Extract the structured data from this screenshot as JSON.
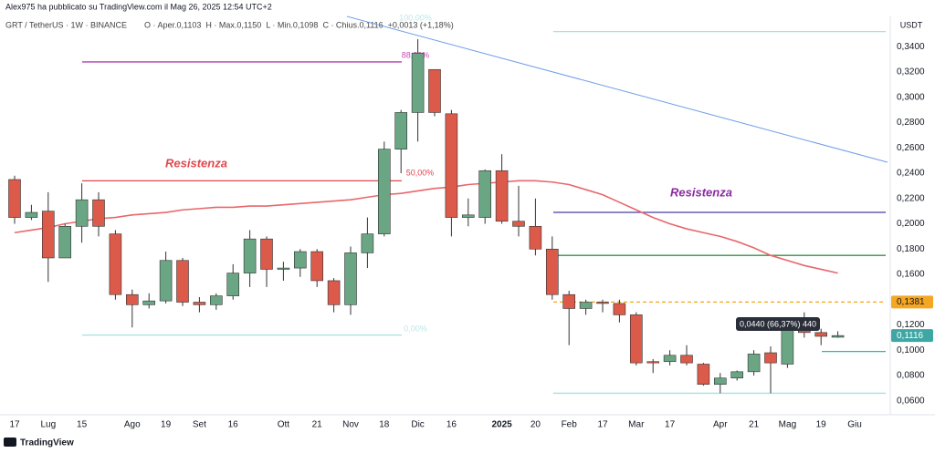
{
  "header": "Alex975 ha pubblicato su TradingView.com il Mag 26, 2025 12:54 UTC+2",
  "footer": "TradingView",
  "chart_data": {
    "type": "candlestick",
    "title": "GRT / TetherUS · 1W · BINANCE",
    "ohlc_legend": "O · Aper.0,1103  H · Max.0,1150  L · Min.0,1098  C · Chius.0,1116  +0,0013 (+1,18%)",
    "y_axis_label": "USDT",
    "up_color": "#6aa584",
    "down_color": "#db5a4a",
    "categories": [
      "17",
      null,
      "Lug",
      null,
      "15",
      null,
      null,
      "Ago",
      null,
      "19",
      null,
      "Set",
      null,
      "16",
      null,
      null,
      "Ott",
      null,
      "21",
      null,
      "Nov",
      null,
      "18",
      null,
      "Dic",
      null,
      "16",
      null,
      null,
      "2025",
      null,
      "20",
      null,
      "Feb",
      null,
      "17",
      null,
      "Mar",
      null,
      "17",
      null,
      null,
      "Apr",
      null,
      "21",
      null,
      "Mag",
      null,
      "19",
      null,
      "Giu"
    ],
    "open": [
      0.235,
      0.205,
      0.21,
      0.173,
      0.198,
      0.219,
      0.192,
      0.144,
      0.136,
      0.139,
      0.171,
      0.138,
      0.136,
      0.143,
      0.161,
      0.188,
      0.164,
      0.165,
      0.178,
      0.155,
      0.136,
      0.177,
      0.192,
      0.259,
      0.288,
      0.322,
      0.287,
      0.205,
      0.205,
      0.242,
      0.202,
      0.198,
      0.18,
      0.144,
      0.133,
      0.138,
      0.137,
      0.128,
      0.091,
      0.091,
      0.096,
      0.089,
      0.073,
      0.078,
      0.083,
      0.098,
      0.089,
      0.117,
      0.114,
      0.1103,
      null
    ],
    "high": [
      0.238,
      0.215,
      0.225,
      0.2,
      0.232,
      0.225,
      0.195,
      0.148,
      0.145,
      0.178,
      0.173,
      0.142,
      0.145,
      0.168,
      0.195,
      0.19,
      0.17,
      0.18,
      0.18,
      0.157,
      0.182,
      0.205,
      0.265,
      0.29,
      0.346,
      0.322,
      0.29,
      0.22,
      0.243,
      0.255,
      0.23,
      0.22,
      0.19,
      0.147,
      0.14,
      0.14,
      0.14,
      0.13,
      0.093,
      0.1,
      0.104,
      0.09,
      0.082,
      0.084,
      0.1,
      0.103,
      0.125,
      0.13,
      0.117,
      0.115,
      null
    ],
    "low": [
      0.2,
      0.203,
      0.154,
      0.173,
      0.185,
      0.19,
      0.14,
      0.118,
      0.133,
      0.137,
      0.135,
      0.13,
      0.132,
      0.14,
      0.15,
      0.15,
      0.155,
      0.158,
      0.15,
      0.13,
      0.128,
      0.165,
      0.19,
      0.24,
      0.265,
      0.285,
      0.19,
      0.198,
      0.2,
      0.2,
      0.19,
      0.175,
      0.14,
      0.104,
      0.128,
      0.13,
      0.122,
      0.088,
      0.082,
      0.088,
      0.088,
      0.072,
      0.066,
      0.076,
      0.08,
      0.066,
      0.086,
      0.11,
      0.104,
      0.1098,
      null
    ],
    "close": [
      0.205,
      0.209,
      0.173,
      0.198,
      0.219,
      0.198,
      0.144,
      0.136,
      0.139,
      0.171,
      0.138,
      0.136,
      0.143,
      0.161,
      0.188,
      0.164,
      0.165,
      0.178,
      0.155,
      0.136,
      0.177,
      0.192,
      0.259,
      0.288,
      0.335,
      0.288,
      0.205,
      0.207,
      0.242,
      0.202,
      0.198,
      0.18,
      0.144,
      0.133,
      0.138,
      0.137,
      0.128,
      0.09,
      0.09,
      0.096,
      0.09,
      0.073,
      0.078,
      0.083,
      0.097,
      0.09,
      0.117,
      0.114,
      0.111,
      0.1116,
      null
    ],
    "moving_average": {
      "color": "#e8676b",
      "values": [
        0.193,
        0.195,
        0.197,
        0.2,
        0.202,
        0.204,
        0.205,
        0.207,
        0.208,
        0.209,
        0.211,
        0.212,
        0.213,
        0.213,
        0.214,
        0.214,
        0.215,
        0.216,
        0.217,
        0.218,
        0.219,
        0.221,
        0.223,
        0.224,
        0.226,
        0.228,
        0.229,
        0.231,
        0.232,
        0.233,
        0.234,
        0.234,
        0.233,
        0.231,
        0.227,
        0.223,
        0.217,
        0.211,
        0.205,
        0.2,
        0.196,
        0.193,
        0.19,
        0.186,
        0.181,
        0.175,
        0.171,
        0.167,
        0.164,
        0.161,
        null
      ]
    },
    "ylim": [
      0.049,
      0.364
    ],
    "yticks": [
      {
        "value": 0.34,
        "label": "0,3400"
      },
      {
        "value": 0.32,
        "label": "0,3200"
      },
      {
        "value": 0.3,
        "label": "0,3000"
      },
      {
        "value": 0.28,
        "label": "0,2800"
      },
      {
        "value": 0.26,
        "label": "0,2600"
      },
      {
        "value": 0.24,
        "label": "0,2400"
      },
      {
        "value": 0.22,
        "label": "0,2200"
      },
      {
        "value": 0.2,
        "label": "0,2000"
      },
      {
        "value": 0.18,
        "label": "0,1800"
      },
      {
        "value": 0.16,
        "label": "0,1600"
      },
      {
        "value": 0.12,
        "label": "0,1200"
      },
      {
        "value": 0.1,
        "label": "0,1000"
      },
      {
        "value": 0.08,
        "label": "0,0800"
      },
      {
        "value": 0.06,
        "label": "0,0600"
      }
    ],
    "lines": [
      {
        "value": 0.328,
        "color": "#b03fb0"
      },
      {
        "value": 0.234,
        "color": "#e0474c"
      },
      {
        "value": 0.112,
        "color": "#a6e0e0"
      },
      {
        "value": 0.352,
        "color": "#a6e0e0"
      },
      {
        "value": 0.209,
        "color": "#4a3aa8"
      },
      {
        "value": 0.175,
        "color": "#3d8f4a"
      },
      {
        "value": 0.1381,
        "color": "#f5a623",
        "dashed": true
      },
      {
        "value": 0.066,
        "color": "#a6e0e0"
      },
      {
        "value": 0.099,
        "color": "#2fb5b5"
      }
    ],
    "fib_labels": [
      "100,00%",
      "88,20%",
      "50,00%",
      "0,00%"
    ],
    "annotations": [
      "Resistenza",
      "Resistenza"
    ],
    "price_labels": [
      {
        "value": 0.1381,
        "label": "0,1381",
        "color": "#f5a623"
      },
      {
        "value": 0.1116,
        "label": "0,1116",
        "color": "#3fa7a3"
      }
    ],
    "measure_label": "0,0440 (66,37%) 440"
  }
}
